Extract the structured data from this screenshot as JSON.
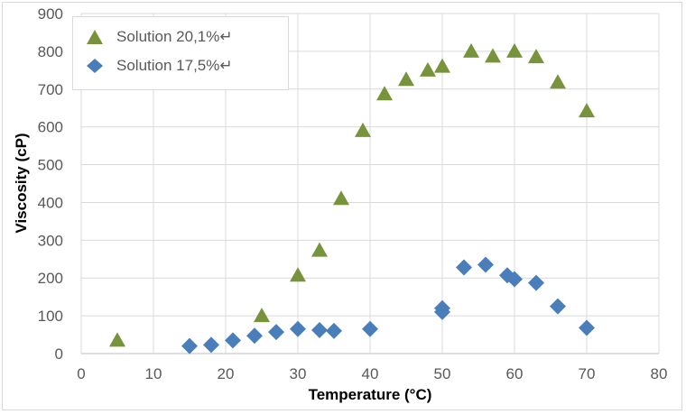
{
  "chart_data": {
    "type": "scatter",
    "title": "",
    "xlabel": "Temperature (°C)",
    "ylabel": "Viscosity (cP)",
    "xlim": [
      0,
      80
    ],
    "ylim": [
      0,
      900
    ],
    "xticks": [
      0,
      10,
      20,
      30,
      40,
      50,
      60,
      70,
      80
    ],
    "yticks": [
      0,
      100,
      200,
      300,
      400,
      500,
      600,
      700,
      800,
      900
    ],
    "grid": true,
    "legend_position": "top-left",
    "series": [
      {
        "name": "Solution 20,1%↵",
        "marker": "triangle",
        "color": "#77933c",
        "x": [
          5,
          25,
          30,
          33,
          36,
          39,
          42,
          45,
          48,
          50,
          54,
          57,
          60,
          63,
          66,
          70
        ],
        "y": [
          35,
          100,
          207,
          273,
          410,
          590,
          687,
          725,
          750,
          760,
          800,
          787,
          800,
          785,
          718,
          642
        ]
      },
      {
        "name": "Solution 17,5%↵",
        "marker": "diamond",
        "color": "#4a7ebb",
        "x": [
          15,
          18,
          21,
          24,
          27,
          30,
          33,
          35,
          40,
          50,
          50,
          53,
          56,
          59,
          60,
          63,
          66,
          70
        ],
        "y": [
          20,
          23,
          35,
          47,
          57,
          65,
          62,
          60,
          65,
          110,
          120,
          228,
          235,
          207,
          197,
          187,
          125,
          68
        ]
      }
    ]
  }
}
